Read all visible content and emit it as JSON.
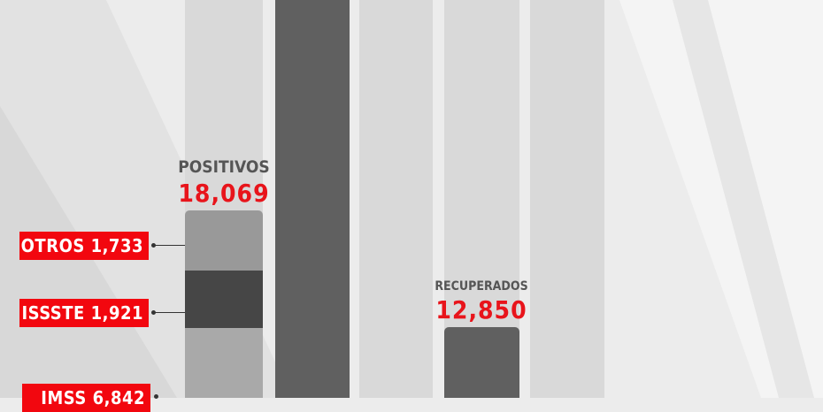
{
  "chart_data": {
    "type": "bar",
    "bars": [
      {
        "label": "POSITIVOS",
        "value": "18,069",
        "segments": [
          {
            "label": "OTROS 1,733",
            "value": 1733
          },
          {
            "label": "ISSSTE 1,921",
            "value": 1921
          },
          {
            "label": "IMSS 6,842",
            "value": 6842
          }
        ]
      },
      {
        "label": "RECUPERADOS",
        "value": "12,850"
      }
    ]
  },
  "colors": {
    "accent": "#e8141b",
    "tag": "#f2070f",
    "dark_bar": "#606060",
    "light_bar": "#d9d9d9"
  }
}
